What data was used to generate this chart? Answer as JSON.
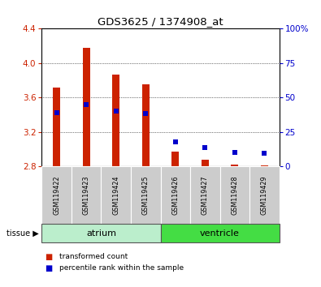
{
  "title": "GDS3625 / 1374908_at",
  "samples": [
    "GSM119422",
    "GSM119423",
    "GSM119424",
    "GSM119425",
    "GSM119426",
    "GSM119427",
    "GSM119428",
    "GSM119429"
  ],
  "red_values": [
    3.72,
    4.18,
    3.87,
    3.75,
    2.97,
    2.875,
    2.82,
    2.81
  ],
  "blue_values": [
    3.42,
    3.52,
    3.44,
    3.415,
    3.09,
    3.02,
    2.965,
    2.955
  ],
  "baseline": 2.8,
  "ylim_left": [
    2.8,
    4.4
  ],
  "ylim_right": [
    0,
    100
  ],
  "yticks_left": [
    2.8,
    3.2,
    3.6,
    4.0,
    4.4
  ],
  "yticks_right": [
    0,
    25,
    50,
    75,
    100
  ],
  "ytick_labels_right": [
    "0",
    "25",
    "50",
    "75",
    "100%"
  ],
  "atrium_color": "#BBEECC",
  "ventricle_color": "#44DD44",
  "bar_color": "#CC2200",
  "blue_color": "#0000CC",
  "grid_color": "#000000",
  "bg_color": "#FFFFFF",
  "sample_box_color": "#CCCCCC",
  "left_axis_color": "#CC2200",
  "right_axis_color": "#0000CC",
  "bar_width": 0.25
}
